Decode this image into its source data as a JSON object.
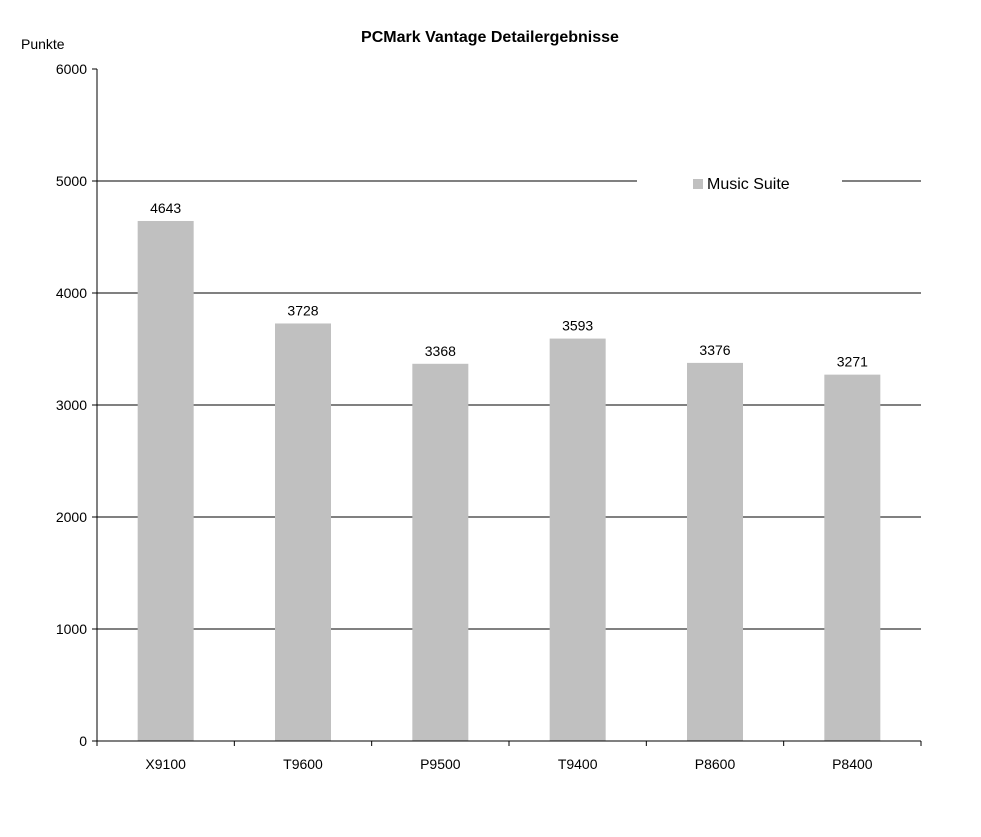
{
  "chart_data": {
    "type": "bar",
    "title": "PCMark Vantage Detailergebnisse",
    "ylabel": "Punkte",
    "xlabel": "",
    "categories": [
      "X9100",
      "T9600",
      "P9500",
      "T9400",
      "P8600",
      "P8400"
    ],
    "series": [
      {
        "name": "Music Suite",
        "values": [
          4643,
          3728,
          3368,
          3593,
          3376,
          3271
        ]
      }
    ],
    "ylim": [
      0,
      6000
    ],
    "yticks": [
      0,
      1000,
      2000,
      3000,
      4000,
      5000,
      6000
    ],
    "grid": true,
    "legend_position": "top-right",
    "bar_color": "#c0c0c0",
    "data_labels": true
  }
}
